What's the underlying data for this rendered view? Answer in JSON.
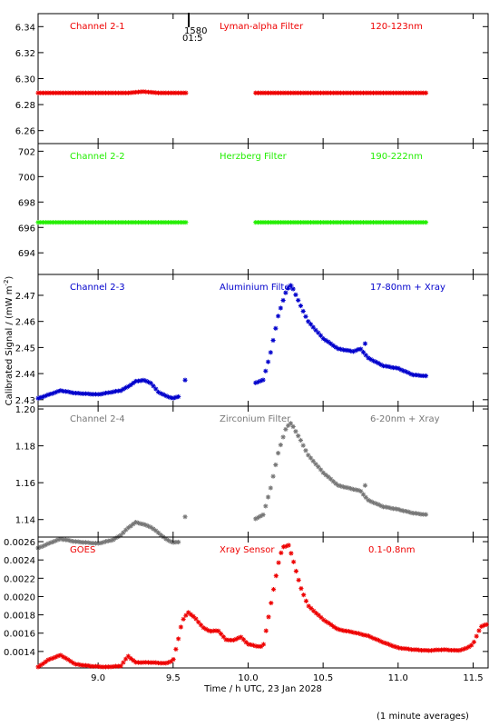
{
  "ylabel": "Calibrated Signal / (mW m",
  "ylabel_sup": "-2",
  "ylabel_end": ")",
  "xlabel": "Time / h UTC, 23 Jan 2028",
  "footnote": "(1 minute averages)",
  "marker_label_1": "1580",
  "marker_label_2": "01:5",
  "colors": {
    "red": "#ee0000",
    "green": "#22ee00",
    "blue": "#0000cc",
    "gray": "#777777"
  },
  "chart_data": [
    {
      "type": "scatter",
      "name": "Channel 2-1",
      "filter": "Lyman-alpha Filter",
      "band": "120-123nm",
      "color": "#ee0000",
      "ylim": [
        6.25,
        6.35
      ],
      "yticks": [
        6.26,
        6.28,
        6.3,
        6.32,
        6.34
      ],
      "ytick_labels": [
        "6.26",
        "6.28",
        "6.30",
        "6.32",
        "6.34"
      ],
      "grid": false,
      "segments": [
        {
          "x": [
            8.6,
            8.9,
            9.2,
            9.3,
            9.4,
            9.6
          ],
          "y": [
            6.289,
            6.289,
            6.289,
            6.29,
            6.289,
            6.289
          ]
        },
        {
          "x": [
            10.05,
            10.5,
            11.0,
            11.2
          ],
          "y": [
            6.289,
            6.289,
            6.289,
            6.289
          ]
        }
      ]
    },
    {
      "type": "scatter",
      "name": "Channel 2-2",
      "filter": "Herzberg Filter",
      "band": "190-222nm",
      "color": "#22ee00",
      "ylim": [
        692.3,
        702.6
      ],
      "yticks": [
        694,
        696,
        698,
        700,
        702
      ],
      "ytick_labels": [
        "694",
        "696",
        "698",
        "700",
        "702"
      ],
      "grid": false,
      "segments": [
        {
          "x": [
            8.6,
            9.6
          ],
          "y": [
            696.4,
            696.4
          ]
        },
        {
          "x": [
            10.05,
            11.2
          ],
          "y": [
            696.4,
            696.4
          ]
        }
      ]
    },
    {
      "type": "scatter",
      "name": "Channel 2-3",
      "filter": "Aluminium Filter",
      "band": "17-80nm + Xray",
      "color": "#0000cc",
      "ylim": [
        2.4275,
        2.478
      ],
      "yticks": [
        2.43,
        2.44,
        2.45,
        2.46,
        2.47
      ],
      "ytick_labels": [
        "2.43",
        "2.44",
        "2.45",
        "2.46",
        "2.47"
      ],
      "grid": false,
      "segments": [
        {
          "x": [
            8.6,
            8.7,
            8.75,
            8.85,
            9.0,
            9.1,
            9.15,
            9.2,
            9.25,
            9.3,
            9.35,
            9.4,
            9.45,
            9.5,
            9.55
          ],
          "y": [
            2.4305,
            2.4325,
            2.4335,
            2.4325,
            2.432,
            2.433,
            2.4335,
            2.435,
            2.437,
            2.4375,
            2.4365,
            2.433,
            2.4315,
            2.4305,
            2.4315
          ]
        },
        {
          "x": [
            9.58
          ],
          "y": [
            2.4375
          ]
        },
        {
          "x": [
            10.05,
            10.1,
            10.15,
            10.2,
            10.25,
            10.28,
            10.3,
            10.35,
            10.4,
            10.5,
            10.6,
            10.7,
            10.75,
            10.8,
            10.9,
            11.0,
            11.1,
            11.2
          ],
          "y": [
            2.4365,
            2.4375,
            2.448,
            2.462,
            2.471,
            2.474,
            2.4725,
            2.466,
            2.46,
            2.4535,
            2.4495,
            2.4485,
            2.4495,
            2.446,
            2.443,
            2.442,
            2.4395,
            2.439
          ]
        },
        {
          "x": [
            10.78
          ],
          "y": [
            2.4515
          ]
        }
      ]
    },
    {
      "type": "scatter",
      "name": "Channel 2-4",
      "filter": "Zirconium Filter",
      "band": "6-20nm + Xray",
      "color": "#777777",
      "ylim": [
        1.1305,
        1.2015
      ],
      "yticks": [
        1.14,
        1.16,
        1.18,
        1.2
      ],
      "ytick_labels": [
        "1.14",
        "1.16",
        "1.18",
        "1.20"
      ],
      "grid": false,
      "segments": [
        {
          "x": [
            8.6,
            8.7,
            8.75,
            8.85,
            9.0,
            9.1,
            9.15,
            9.2,
            9.25,
            9.3,
            9.35,
            9.4,
            9.45,
            9.5,
            9.55
          ],
          "y": [
            1.1245,
            1.128,
            1.1295,
            1.128,
            1.127,
            1.129,
            1.1315,
            1.1355,
            1.1385,
            1.1375,
            1.136,
            1.133,
            1.1295,
            1.1275,
            1.128
          ]
        },
        {
          "x": [
            9.58
          ],
          "y": [
            1.1415
          ]
        },
        {
          "x": [
            10.05,
            10.1,
            10.15,
            10.2,
            10.25,
            10.28,
            10.3,
            10.35,
            10.4,
            10.5,
            10.6,
            10.7,
            10.75,
            10.8,
            10.9,
            11.0,
            11.1,
            11.2
          ],
          "y": [
            1.1405,
            1.1425,
            1.157,
            1.176,
            1.189,
            1.1925,
            1.1905,
            1.183,
            1.175,
            1.1655,
            1.1585,
            1.1565,
            1.1555,
            1.1505,
            1.147,
            1.1455,
            1.1435,
            1.1425
          ]
        },
        {
          "x": [
            10.78
          ],
          "y": [
            1.1585
          ]
        }
      ]
    },
    {
      "type": "scatter",
      "name": "GOES",
      "filter": "Xray Sensor",
      "band": "0.1-0.8nm",
      "color": "#ee0000",
      "ylim": [
        0.00122,
        0.00265
      ],
      "yticks": [
        0.0014,
        0.0016,
        0.0018,
        0.002,
        0.0022,
        0.0024,
        0.0026
      ],
      "ytick_labels": [
        "0.0014",
        "0.0016",
        "0.0018",
        "0.0020",
        "0.0022",
        "0.0024",
        "0.0026"
      ],
      "grid": false,
      "segments": [
        {
          "x": [
            8.6,
            8.67,
            8.75,
            8.85,
            8.95,
            9.05,
            9.15,
            9.2,
            9.25,
            9.35,
            9.45,
            9.5,
            9.53,
            9.56,
            9.6,
            9.65,
            9.7,
            9.75,
            9.8,
            9.85,
            9.9,
            9.95,
            10.0,
            10.05,
            10.1,
            10.15,
            10.2,
            10.23,
            10.27,
            10.3,
            10.35,
            10.4,
            10.5,
            10.6,
            10.7,
            10.8,
            10.9,
            11.0,
            11.1,
            11.2,
            11.3,
            11.4,
            11.45,
            11.5,
            11.55,
            11.6
          ],
          "y": [
            0.00123,
            0.00131,
            0.00136,
            0.00126,
            0.00124,
            0.00123,
            0.00124,
            0.00135,
            0.00128,
            0.00128,
            0.00127,
            0.0013,
            0.0015,
            0.00173,
            0.00183,
            0.00176,
            0.00166,
            0.00162,
            0.00163,
            0.00153,
            0.00152,
            0.00156,
            0.00148,
            0.00146,
            0.00145,
            0.0019,
            0.00235,
            0.00254,
            0.00256,
            0.0024,
            0.0021,
            0.0019,
            0.00175,
            0.00164,
            0.00161,
            0.00157,
            0.0015,
            0.00144,
            0.00142,
            0.00141,
            0.00142,
            0.00141,
            0.00143,
            0.00148,
            0.00167,
            0.0017
          ]
        }
      ]
    }
  ],
  "xaxis": {
    "range": [
      8.6,
      11.6
    ],
    "ticks": [
      9.0,
      9.5,
      10.0,
      10.5,
      11.0,
      11.5
    ],
    "tick_labels": [
      "9.0",
      "9.5",
      "10.0",
      "10.5",
      "11.0",
      "11.5"
    ]
  }
}
